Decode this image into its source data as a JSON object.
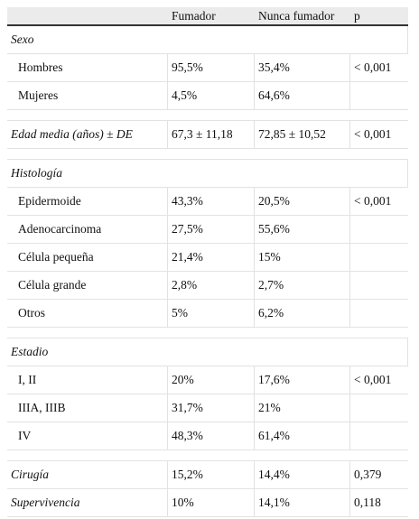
{
  "header": {
    "columns": [
      "Fumador",
      "Nunca fumador",
      "p"
    ]
  },
  "groups": [
    {
      "title": "Sexo",
      "rows": [
        [
          "Hombres",
          "95,5%",
          "35,4%",
          "< 0,001"
        ],
        [
          "Mujeres",
          "4,5%",
          "64,6%"
        ]
      ]
    },
    {
      "rows": [
        [
          "Edad media (años) ± DE",
          "67,3 ± 11,18",
          "72,85 ± 10,52",
          "< 0,001"
        ]
      ]
    },
    {
      "title": "Histología",
      "rows": [
        [
          "Epidermoide",
          "43,3%",
          "20,5%",
          "< 0,001"
        ],
        [
          "Adenocarcinoma",
          "27,5%",
          "55,6%"
        ],
        [
          "Célula pequeña",
          "21,4%",
          "15%"
        ],
        [
          "Célula grande",
          "2,8%",
          "2,7%"
        ],
        [
          "Otros",
          "5%",
          "6,2%"
        ]
      ]
    },
    {
      "title": "Estadio",
      "rows": [
        [
          "I, II",
          "20%",
          "17,6%",
          "< 0,001"
        ],
        [
          "IIIA, IIIB",
          "31,7%",
          "21%"
        ],
        [
          "IV",
          "48,3%",
          "61,4%"
        ]
      ]
    },
    {
      "rows": [
        [
          "Cirugía",
          "15,2%",
          "14,4%",
          "0,379"
        ],
        [
          "Supervivencia",
          "10%",
          "14,1%",
          "0,118"
        ]
      ]
    }
  ]
}
